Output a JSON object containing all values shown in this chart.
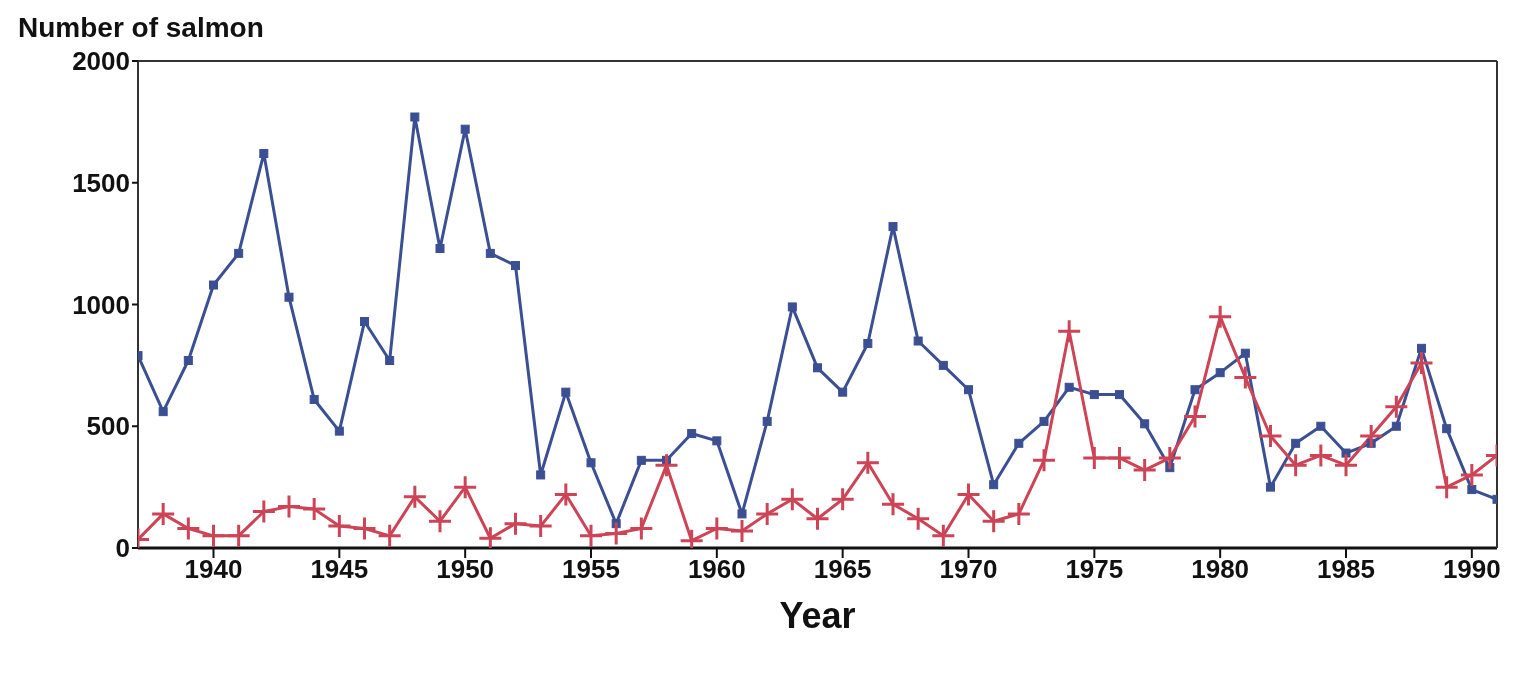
{
  "chart_data": {
    "type": "line",
    "ylabel": "Number of salmon",
    "xlabel": "Year",
    "x": [
      1937,
      1938,
      1939,
      1940,
      1941,
      1942,
      1943,
      1944,
      1945,
      1946,
      1947,
      1948,
      1949,
      1950,
      1951,
      1952,
      1953,
      1954,
      1955,
      1956,
      1957,
      1958,
      1959,
      1960,
      1961,
      1962,
      1963,
      1964,
      1965,
      1966,
      1967,
      1968,
      1969,
      1970,
      1971,
      1972,
      1973,
      1974,
      1975,
      1976,
      1977,
      1978,
      1979,
      1980,
      1981,
      1982,
      1983,
      1984,
      1985,
      1986,
      1987,
      1988,
      1989,
      1990,
      1991
    ],
    "series": [
      {
        "color": "#3b4f93",
        "marker": "square",
        "values": [
          790,
          560,
          770,
          1080,
          1210,
          1620,
          1030,
          610,
          480,
          930,
          770,
          1770,
          1230,
          1720,
          1210,
          1160,
          300,
          640,
          350,
          100,
          360,
          360,
          470,
          440,
          140,
          520,
          990,
          740,
          640,
          840,
          1320,
          850,
          750,
          650,
          260,
          430,
          520,
          660,
          630,
          630,
          510,
          330,
          650,
          720,
          800,
          250,
          430,
          500,
          390,
          430,
          500,
          820,
          490,
          240,
          200
        ]
      },
      {
        "color": "#cc4455",
        "marker": "cross",
        "values": [
          35,
          140,
          80,
          50,
          50,
          150,
          170,
          160,
          90,
          80,
          50,
          210,
          110,
          250,
          40,
          100,
          90,
          220,
          50,
          60,
          80,
          340,
          30,
          80,
          70,
          140,
          200,
          120,
          200,
          350,
          180,
          120,
          50,
          220,
          110,
          140,
          360,
          890,
          370,
          370,
          320,
          370,
          540,
          950,
          700,
          460,
          340,
          380,
          340,
          460,
          580,
          760,
          250,
          300,
          380
        ]
      }
    ],
    "xlim": [
      1937,
      1991
    ],
    "xticks": [
      1940,
      1945,
      1950,
      1955,
      1960,
      1965,
      1970,
      1975,
      1980,
      1985,
      1990
    ],
    "ylim": [
      0,
      2000
    ],
    "yticks": [
      0,
      500,
      1000,
      1500,
      2000
    ],
    "grid": false,
    "legend": false,
    "line_style": "solid"
  }
}
